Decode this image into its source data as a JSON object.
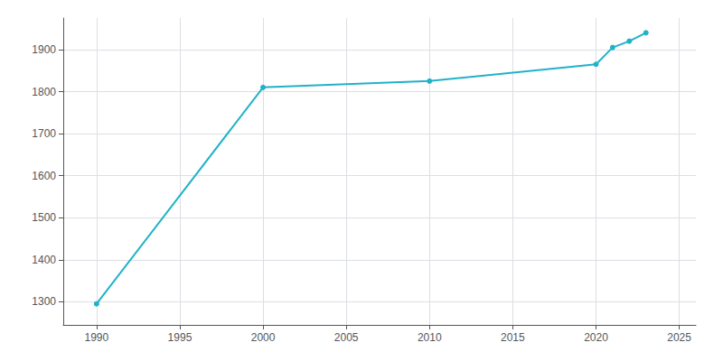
{
  "chart_data": {
    "type": "line",
    "x": [
      1990,
      2000,
      2010,
      2020,
      2021,
      2022,
      2023
    ],
    "values": [
      1295,
      1810,
      1825,
      1865,
      1905,
      1920,
      1940
    ],
    "color": "#20B2C8",
    "marker": "circle",
    "xlim": [
      1988,
      2026
    ],
    "ylim": [
      1245,
      1975
    ],
    "xticks": [
      1990,
      1995,
      2000,
      2005,
      2010,
      2015,
      2020,
      2025
    ],
    "yticks": [
      1300,
      1400,
      1500,
      1600,
      1700,
      1800,
      1900
    ],
    "grid": true
  }
}
